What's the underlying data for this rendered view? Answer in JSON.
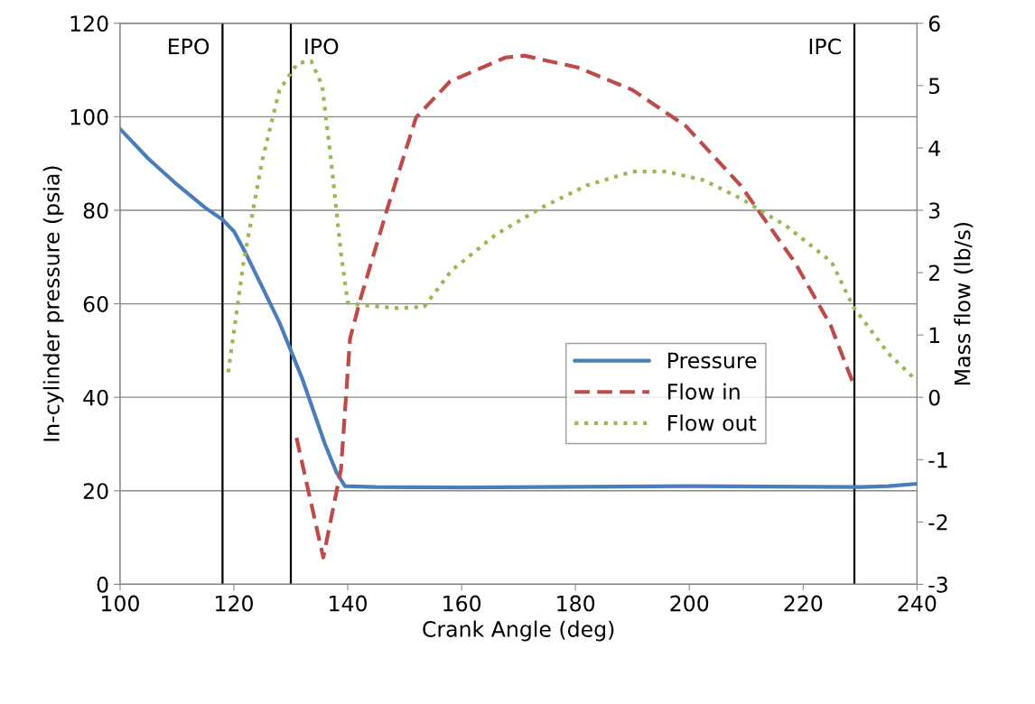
{
  "chart_data": {
    "type": "line",
    "xlabel": "Crank Angle (deg)",
    "ylabel": "In-cylinder pressure (psia)",
    "y2label": "Mass flow (lb/s)",
    "xlim": [
      100,
      240
    ],
    "xticks": [
      100,
      120,
      140,
      160,
      180,
      200,
      220,
      240
    ],
    "ylim": [
      0,
      120
    ],
    "yticks": [
      0,
      20,
      40,
      60,
      80,
      100,
      120
    ],
    "y2lim": [
      -3,
      6
    ],
    "y2ticks": [
      -3,
      -2,
      -1,
      0,
      1,
      2,
      3,
      4,
      5,
      6
    ],
    "grid": "y",
    "legend": "center right",
    "series": [
      {
        "name": "Pressure",
        "color": "#4a7ebb",
        "line_style": "solid",
        "x": [
          100,
          105,
          110,
          115,
          118,
          120,
          122,
          125,
          128,
          130,
          132,
          134,
          136,
          138,
          139.5,
          145,
          160,
          200,
          230,
          235,
          240
        ],
        "values": [
          97.4,
          91,
          85.5,
          80.5,
          78,
          75.5,
          71,
          63.5,
          56,
          50,
          44,
          37,
          30,
          24,
          21,
          20.8,
          20.7,
          21,
          20.8,
          21,
          21.5
        ]
      },
      {
        "name": "Flow in",
        "color": "#be4b48",
        "line_style": "dashed",
        "axis": "y2",
        "x": [
          131,
          135.7,
          138.8,
          140.4,
          142.3,
          147,
          152,
          158,
          167.7,
          171,
          180.4,
          190,
          199.4,
          209,
          218.5,
          224.8,
          228.8
        ],
        "values": [
          -0.65,
          -2.57,
          -1.16,
          0.94,
          1.6,
          3.04,
          4.49,
          5.07,
          5.45,
          5.48,
          5.29,
          4.93,
          4.35,
          3.4,
          2.17,
          1.16,
          0.22
        ]
      },
      {
        "name": "Flow out",
        "color": "#98b954",
        "line_style": "dotted",
        "axis": "y2",
        "x": [
          119,
          121.7,
          124.9,
          128,
          131.2,
          133.6,
          135.5,
          137.1,
          138.8,
          140,
          142.3,
          148.7,
          153.4,
          158.2,
          166,
          174,
          182,
          190,
          196,
          202.6,
          209,
          217,
          225,
          228.8,
          235,
          240
        ],
        "values": [
          0.4,
          2.17,
          3.77,
          4.93,
          5.36,
          5.39,
          5.0,
          3.77,
          2.32,
          1.52,
          1.48,
          1.43,
          1.45,
          2.03,
          2.61,
          3.04,
          3.4,
          3.62,
          3.62,
          3.48,
          3.19,
          2.75,
          2.17,
          1.45,
          0.7,
          0.26
        ]
      }
    ],
    "ref_lines": [
      {
        "axis": "x",
        "value": 118,
        "color": "#000000",
        "label": "EPO"
      },
      {
        "axis": "x",
        "value": 130,
        "color": "#000000",
        "label": "IPO"
      },
      {
        "axis": "x",
        "value": 229,
        "color": "#000000",
        "label": "IPC"
      }
    ]
  }
}
